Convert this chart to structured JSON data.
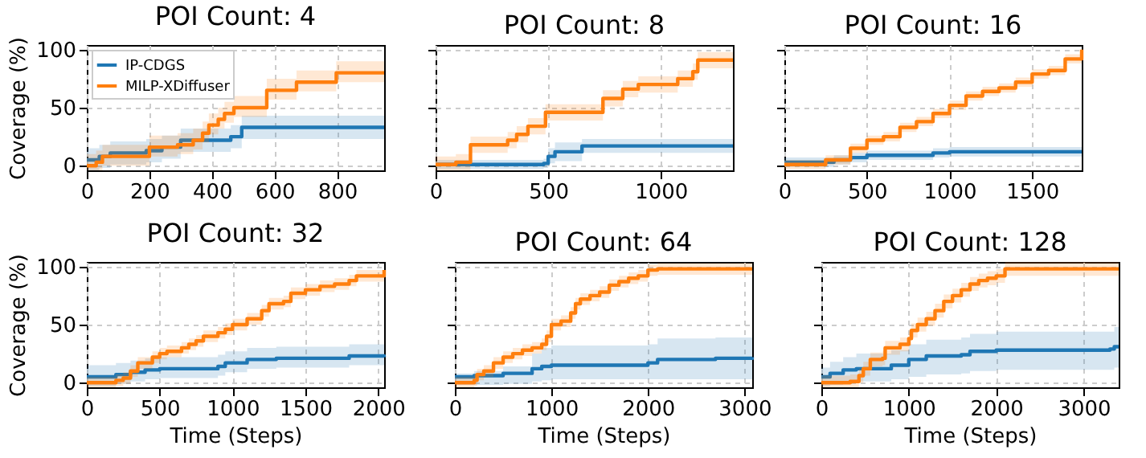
{
  "chart_data": [
    {
      "type": "step",
      "title": "POI Count: 4",
      "ylabel": "Coverage (%)",
      "xlim": [
        0,
        950
      ],
      "xticks": [
        0,
        200,
        400,
        600,
        800
      ],
      "ylim": [
        -4,
        104
      ],
      "yticks": [
        0,
        50,
        100
      ],
      "grid": true,
      "legend": "top left",
      "series": [
        {
          "name": "IP-CDGS",
          "color": "#1f77b4",
          "x": [
            0,
            40,
            75,
            190,
            240,
            300,
            460,
            495,
            950
          ],
          "values": [
            5,
            8,
            11,
            13,
            16,
            22,
            25,
            33,
            33
          ],
          "lower": [
            -4,
            -2,
            1,
            3,
            6,
            12,
            15,
            23,
            23
          ],
          "upper": [
            15,
            18,
            21,
            23,
            26,
            32,
            35,
            43,
            43
          ]
        },
        {
          "name": "MILP-XDiffuser",
          "color": "#ff7f0e",
          "x": [
            0,
            30,
            50,
            200,
            290,
            340,
            370,
            390,
            420,
            440,
            470,
            575,
            670,
            797,
            950
          ],
          "values": [
            0,
            3,
            8,
            16,
            18,
            22,
            28,
            35,
            40,
            45,
            50,
            65,
            72,
            80,
            80
          ],
          "lower": [
            -4,
            -4,
            0,
            8,
            10,
            14,
            20,
            27,
            32,
            37,
            42,
            57,
            64,
            72,
            72
          ],
          "upper": [
            10,
            13,
            18,
            26,
            28,
            32,
            38,
            45,
            50,
            55,
            60,
            75,
            82,
            90,
            90
          ]
        }
      ]
    },
    {
      "type": "step",
      "title": "POI Count: 8",
      "xlim": [
        0,
        1320
      ],
      "xticks": [
        0,
        500,
        1000
      ],
      "ylim": [
        -4,
        104
      ],
      "yticks": [
        0,
        50,
        100
      ],
      "grid": true,
      "tick_labels": "x",
      "series": [
        {
          "color": "#1f77b4",
          "x": [
            0,
            480,
            500,
            530,
            650,
            1320
          ],
          "values": [
            1,
            2,
            8,
            12,
            17,
            17
          ],
          "lower": [
            -3,
            -2,
            2,
            4,
            11,
            11
          ],
          "upper": [
            5,
            6,
            15,
            20,
            23,
            23
          ]
        },
        {
          "color": "#ff7f0e",
          "x": [
            0,
            90,
            155,
            320,
            360,
            410,
            488,
            743,
            831,
            900,
            1075,
            1142,
            1164,
            1320
          ],
          "values": [
            1,
            3,
            18,
            22,
            27,
            34,
            46,
            58,
            66,
            70,
            75,
            81,
            91,
            91
          ],
          "lower": [
            -4,
            -4,
            11,
            15,
            20,
            27,
            39,
            51,
            59,
            63,
            68,
            74,
            84,
            84
          ],
          "upper": [
            8,
            10,
            25,
            29,
            34,
            41,
            53,
            65,
            73,
            77,
            82,
            88,
            98,
            98
          ]
        }
      ]
    },
    {
      "type": "step",
      "title": "POI Count: 16",
      "xlim": [
        0,
        1800
      ],
      "xticks": [
        0,
        500,
        1000,
        1500
      ],
      "ylim": [
        -4,
        104
      ],
      "yticks": [
        0,
        50,
        100
      ],
      "grid": true,
      "tick_labels": "x",
      "series": [
        {
          "color": "#1f77b4",
          "x": [
            0,
            300,
            400,
            500,
            900,
            1000,
            1800
          ],
          "values": [
            3,
            5,
            7,
            9,
            11,
            12,
            12
          ],
          "lower": [
            -1,
            1,
            3,
            5,
            7,
            8,
            8
          ],
          "upper": [
            7,
            9,
            11,
            13,
            15,
            16,
            16
          ]
        },
        {
          "color": "#ff7f0e",
          "x": [
            0,
            250,
            400,
            500,
            600,
            700,
            800,
            900,
            1000,
            1100,
            1200,
            1300,
            1400,
            1500,
            1600,
            1700,
            1800
          ],
          "values": [
            1,
            5,
            15,
            22,
            25,
            33,
            38,
            45,
            52,
            60,
            64,
            67,
            72,
            79,
            82,
            92,
            100
          ],
          "lower": [
            -3,
            1,
            11,
            18,
            21,
            29,
            34,
            41,
            48,
            56,
            60,
            63,
            68,
            75,
            78,
            88,
            96
          ],
          "upper": [
            5,
            9,
            19,
            26,
            29,
            37,
            42,
            49,
            56,
            64,
            68,
            71,
            76,
            83,
            86,
            96,
            104
          ]
        }
      ]
    },
    {
      "type": "step",
      "title": "POI Count: 32",
      "xlabel": "Time (Steps)",
      "ylabel": "Coverage (%)",
      "xlim": [
        0,
        2040
      ],
      "xticks": [
        0,
        500,
        1000,
        1500,
        2000
      ],
      "ylim": [
        -4,
        104
      ],
      "yticks": [
        0,
        50,
        100
      ],
      "grid": true,
      "series": [
        {
          "color": "#1f77b4",
          "x": [
            0,
            200,
            300,
            400,
            500,
            900,
            950,
            1100,
            1300,
            1800,
            2040
          ],
          "values": [
            5,
            7,
            9,
            11,
            12,
            14,
            17,
            20,
            21,
            23,
            22
          ],
          "lower": [
            -3,
            -1,
            1,
            3,
            4,
            6,
            9,
            12,
            13,
            15,
            14
          ],
          "upper": [
            15,
            17,
            19,
            21,
            22,
            24,
            27,
            30,
            31,
            33,
            32
          ]
        },
        {
          "color": "#ff7f0e",
          "x": [
            0,
            200,
            250,
            300,
            350,
            450,
            500,
            550,
            650,
            700,
            750,
            800,
            900,
            950,
            1000,
            1100,
            1200,
            1250,
            1350,
            1400,
            1500,
            1600,
            1700,
            1800,
            1850,
            2040
          ],
          "values": [
            0,
            2,
            4,
            10,
            17,
            22,
            25,
            27,
            30,
            33,
            36,
            40,
            43,
            46,
            50,
            55,
            62,
            68,
            70,
            77,
            80,
            83,
            85,
            88,
            92,
            97
          ],
          "lower": [
            -4,
            -3,
            -1,
            5,
            12,
            17,
            20,
            22,
            25,
            28,
            31,
            35,
            38,
            41,
            45,
            50,
            57,
            63,
            65,
            72,
            75,
            78,
            80,
            83,
            87,
            92
          ],
          "upper": [
            5,
            7,
            9,
            15,
            22,
            27,
            30,
            32,
            35,
            38,
            41,
            45,
            48,
            51,
            55,
            60,
            67,
            73,
            75,
            82,
            85,
            88,
            90,
            93,
            97,
            102
          ]
        }
      ]
    },
    {
      "type": "step",
      "title": "POI Count: 64",
      "xlabel": "Time (Steps)",
      "xlim": [
        0,
        3080
      ],
      "xticks": [
        0,
        1000,
        2000,
        3000
      ],
      "ylim": [
        -4,
        104
      ],
      "yticks": [
        0,
        50,
        100
      ],
      "grid": true,
      "tick_labels": "x",
      "series": [
        {
          "color": "#1f77b4",
          "x": [
            0,
            200,
            500,
            800,
            900,
            1000,
            2000,
            2100,
            2700,
            3080
          ],
          "values": [
            5,
            6,
            8,
            12,
            14,
            15,
            17,
            20,
            21,
            22
          ],
          "lower": [
            -2,
            -2,
            -1,
            1,
            2,
            3,
            3,
            3,
            3,
            3
          ],
          "upper": [
            8,
            10,
            14,
            25,
            30,
            32,
            33,
            38,
            39,
            40
          ]
        },
        {
          "color": "#ff7f0e",
          "x": [
            0,
            200,
            230,
            300,
            400,
            500,
            600,
            700,
            800,
            900,
            950,
            1000,
            1100,
            1200,
            1250,
            1300,
            1400,
            1500,
            1600,
            1700,
            1800,
            1900,
            2000,
            2100,
            3080
          ],
          "values": [
            0,
            2,
            7,
            10,
            17,
            22,
            25,
            28,
            30,
            33,
            40,
            50,
            53,
            60,
            68,
            72,
            75,
            78,
            84,
            87,
            90,
            92,
            97,
            98,
            98
          ],
          "lower": [
            -4,
            -3,
            2,
            5,
            12,
            17,
            20,
            23,
            25,
            28,
            35,
            45,
            48,
            55,
            63,
            67,
            70,
            73,
            79,
            82,
            85,
            87,
            92,
            93,
            93
          ],
          "upper": [
            5,
            7,
            12,
            15,
            22,
            27,
            30,
            33,
            35,
            38,
            45,
            55,
            58,
            65,
            73,
            77,
            80,
            83,
            89,
            92,
            95,
            97,
            102,
            103,
            103
          ]
        }
      ]
    },
    {
      "type": "step",
      "title": "POI Count: 128",
      "xlabel": "Time (Steps)",
      "xlim": [
        0,
        3400
      ],
      "xticks": [
        0,
        1000,
        2000,
        3000
      ],
      "ylim": [
        -4,
        104
      ],
      "yticks": [
        0,
        50,
        100
      ],
      "grid": true,
      "tick_labels": "x",
      "series": [
        {
          "color": "#1f77b4",
          "x": [
            0,
            100,
            250,
            400,
            800,
            1000,
            1200,
            1600,
            1700,
            2000,
            3300,
            3350,
            3400
          ],
          "values": [
            5,
            8,
            11,
            12,
            15,
            20,
            23,
            24,
            27,
            28,
            29,
            31,
            31
          ],
          "lower": [
            -3,
            -2,
            0,
            1,
            3,
            5,
            7,
            8,
            10,
            11,
            11,
            13,
            13
          ],
          "upper": [
            13,
            18,
            22,
            25,
            28,
            33,
            37,
            39,
            42,
            44,
            44,
            48,
            48
          ]
        },
        {
          "color": "#ff7f0e",
          "x": [
            0,
            330,
            430,
            480,
            560,
            700,
            730,
            900,
            1000,
            1030,
            1100,
            1200,
            1300,
            1400,
            1500,
            1600,
            1700,
            1800,
            1900,
            2000,
            2100,
            3400
          ],
          "values": [
            0,
            1,
            6,
            12,
            20,
            21,
            30,
            33,
            38,
            45,
            50,
            55,
            62,
            70,
            75,
            80,
            85,
            88,
            90,
            92,
            98,
            98
          ],
          "lower": [
            -4,
            -4,
            0,
            6,
            14,
            15,
            24,
            27,
            32,
            39,
            44,
            49,
            56,
            64,
            69,
            74,
            79,
            82,
            84,
            86,
            92,
            92
          ],
          "upper": [
            6,
            7,
            12,
            18,
            26,
            27,
            36,
            39,
            44,
            51,
            56,
            61,
            68,
            76,
            81,
            86,
            91,
            94,
            96,
            98,
            104,
            104
          ]
        }
      ]
    }
  ]
}
